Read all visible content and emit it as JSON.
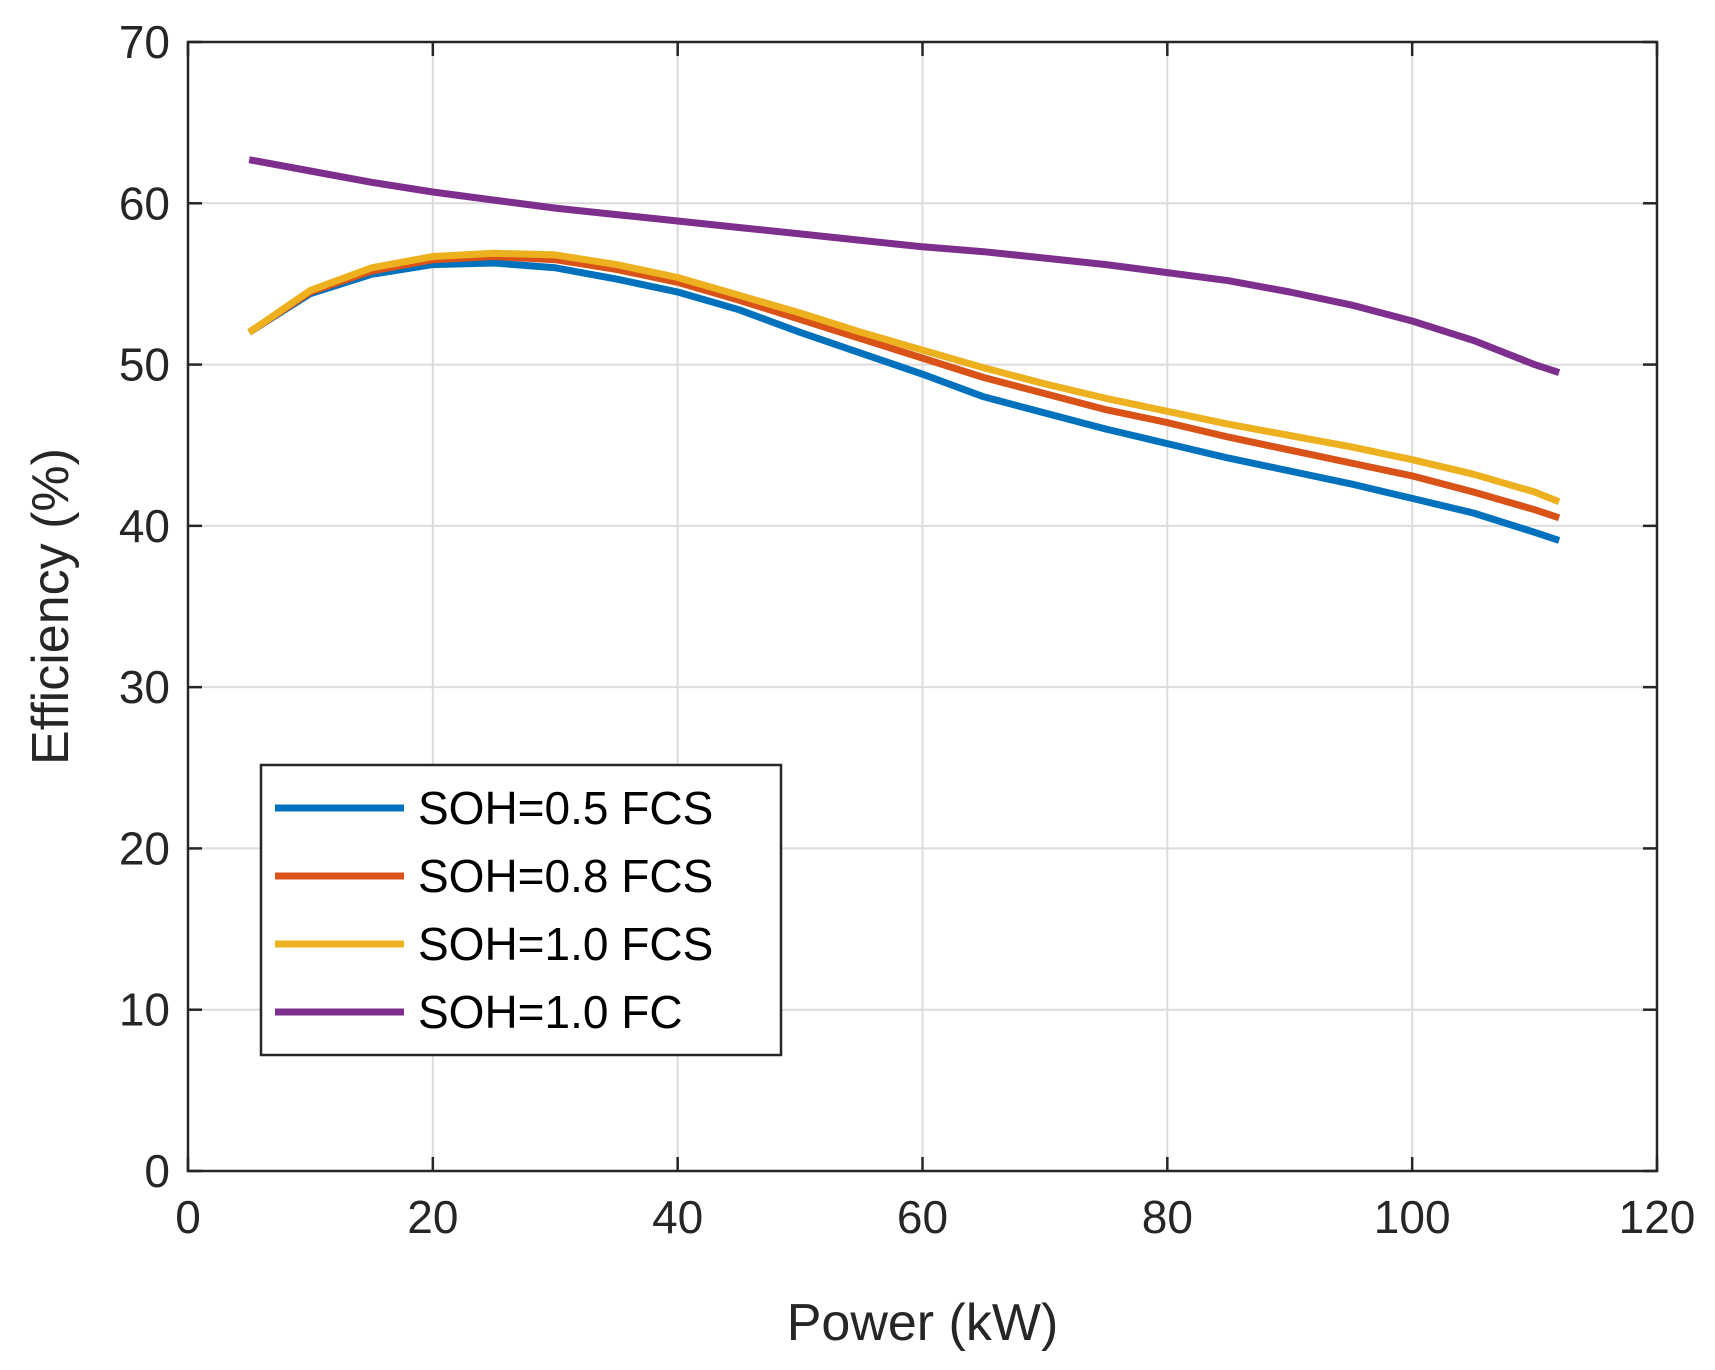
{
  "chart_data": {
    "type": "line",
    "title": "",
    "xlabel": "Power (kW)",
    "ylabel": "Efficiency (%)",
    "xlim": [
      0,
      120
    ],
    "ylim": [
      0,
      70
    ],
    "xticks": [
      "0",
      "20",
      "40",
      "60",
      "80",
      "100",
      "120"
    ],
    "yticks": [
      "0",
      "10",
      "20",
      "30",
      "40",
      "50",
      "60",
      "70"
    ],
    "grid": true,
    "legend_position": "bottom-left",
    "x": [
      5,
      10,
      15,
      20,
      25,
      30,
      35,
      40,
      45,
      50,
      55,
      60,
      65,
      70,
      75,
      80,
      85,
      90,
      95,
      100,
      105,
      110,
      112
    ],
    "series": [
      {
        "name": "SOH=0.5 FCS",
        "color": "#0072BD",
        "values": [
          52.0,
          54.4,
          55.6,
          56.2,
          56.3,
          56.0,
          55.3,
          54.5,
          53.4,
          52.0,
          50.7,
          49.4,
          48.0,
          47.0,
          46.0,
          45.1,
          44.2,
          43.4,
          42.6,
          41.7,
          40.8,
          39.6,
          39.1
        ]
      },
      {
        "name": "SOH=0.8 FCS",
        "color": "#D95319",
        "values": [
          52.0,
          54.5,
          55.8,
          56.5,
          56.7,
          56.5,
          55.9,
          55.1,
          54.0,
          52.8,
          51.6,
          50.4,
          49.2,
          48.2,
          47.2,
          46.4,
          45.5,
          44.7,
          43.9,
          43.1,
          42.1,
          41.0,
          40.5
        ]
      },
      {
        "name": "SOH=1.0 FCS",
        "color": "#EDB120",
        "values": [
          52.0,
          54.6,
          56.0,
          56.7,
          56.9,
          56.8,
          56.2,
          55.4,
          54.3,
          53.2,
          52.0,
          50.9,
          49.8,
          48.8,
          47.9,
          47.1,
          46.3,
          45.6,
          44.9,
          44.1,
          43.2,
          42.1,
          41.5
        ]
      },
      {
        "name": "SOH=1.0 FC",
        "color": "#7E2F8E",
        "values": [
          62.7,
          62.0,
          61.3,
          60.7,
          60.2,
          59.7,
          59.3,
          58.9,
          58.5,
          58.1,
          57.7,
          57.3,
          57.0,
          56.6,
          56.2,
          55.7,
          55.2,
          54.5,
          53.7,
          52.7,
          51.5,
          50.0,
          49.5
        ]
      }
    ]
  }
}
